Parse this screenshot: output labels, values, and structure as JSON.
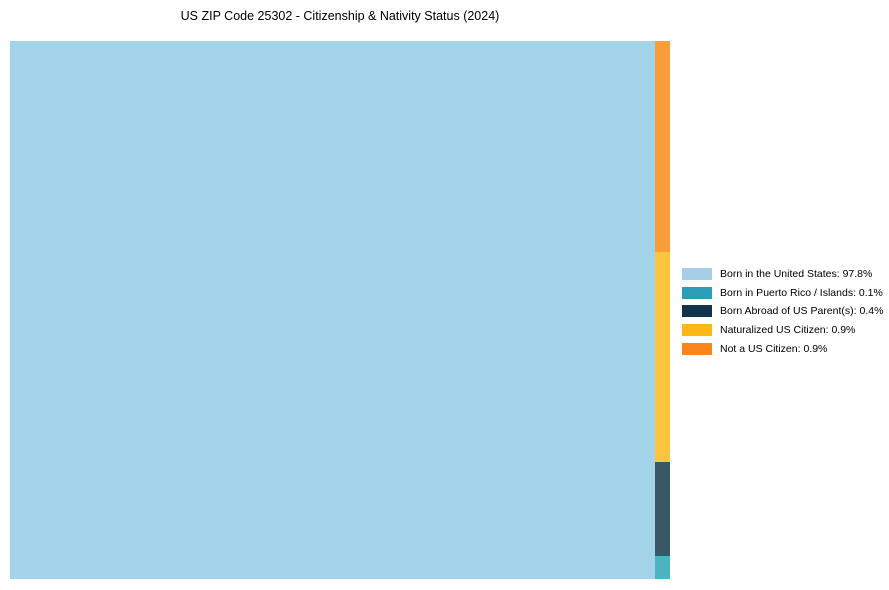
{
  "title": "US ZIP Code 25302 - Citizenship & Nativity Status (2024)",
  "chart_data": {
    "type": "treemap",
    "title": "US ZIP Code 25302 - Citizenship & Nativity Status (2024)",
    "unit": "%",
    "axes": "none",
    "gridlines": false,
    "legend_position": "right",
    "layout": "main item fills left block; remaining items stacked in thin right column, order reversed top to bottom",
    "items": [
      {
        "label": "Born in the United States",
        "value": 97.8,
        "legend_label": "Born in the United States: 97.8%",
        "chart_color": "#a3d3e9",
        "legend_color": "#a5cfe4"
      },
      {
        "label": "Born in Puerto Rico / Islands",
        "value": 0.1,
        "legend_label": "Born in Puerto Rico / Islands: 0.1%",
        "chart_color": "#4cb3c3",
        "legend_color": "#2d9cb8"
      },
      {
        "label": "Born Abroad of US Parent(s)",
        "value": 0.4,
        "legend_label": "Born Abroad of US Parent(s): 0.4%",
        "chart_color": "#3a5766",
        "legend_color": "#11334d"
      },
      {
        "label": "Naturalized US Citizen",
        "value": 0.9,
        "legend_label": "Naturalized US Citizen: 0.9%",
        "chart_color": "#fdc53d",
        "legend_color": "#fdb813"
      },
      {
        "label": "Not a US Citizen",
        "value": 0.9,
        "legend_label": "Not a US Citizen: 0.9%",
        "chart_color": "#f99e3a",
        "legend_color": "#f8861d"
      }
    ]
  },
  "colors": {
    "background": "#ffffff",
    "title_text": "#000000",
    "legend_text": "#000000"
  }
}
